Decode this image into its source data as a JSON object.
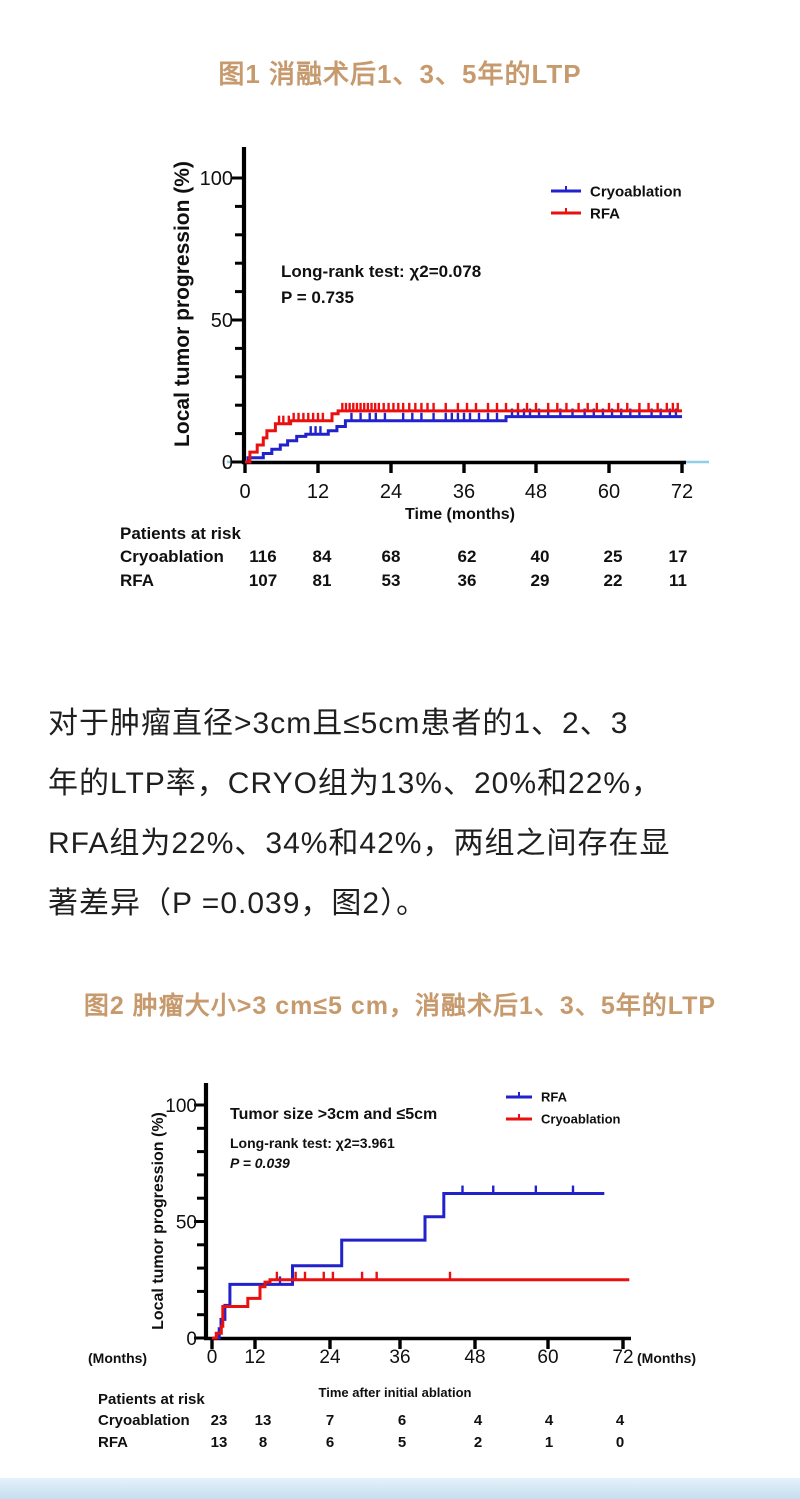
{
  "figure1": {
    "title": "图1 消融术后1、3、5年的LTP"
  },
  "figure2": {
    "title": "图2 肿瘤大小>3 cm≤5 cm，消融术后1、3、5年的LTP"
  },
  "paragraph": {
    "lines": [
      "对于肿瘤直径>3cm且≤5cm患者的1、2、3",
      "年的LTP率，CRYO组为13%、20%和22%，",
      "RFA组为22%、34%和42%，两组之间存在显",
      "著差异（P =0.039，图2）。"
    ]
  },
  "colors": {
    "accent_title": "#c79a6e",
    "blue": "#2222cc",
    "red": "#ea1010",
    "zero_line": "#8fd0e8",
    "bottom_band": "#c4def0"
  },
  "chart_data": [
    {
      "type": "line",
      "subtype": "kaplan-meier-step",
      "title": "图1 消融术后1、3、5年的LTP",
      "ylabel": "Local tumor progression (%)",
      "xlabel": "Time (months)",
      "xticks": [
        0,
        12,
        24,
        36,
        48,
        60,
        72
      ],
      "yticks": [
        0,
        50,
        100
      ],
      "ylim": [
        0,
        110
      ],
      "xlim": [
        0,
        74
      ],
      "grid": false,
      "legend_position": "upper right",
      "annotation": [
        {
          "text": "Long-rank test:  χ2=0.078"
        },
        {
          "text": "P = 0.735"
        }
      ],
      "legend": [
        {
          "label": "Cryoablation",
          "color": "#2222cc"
        },
        {
          "label": "RFA",
          "color": "#ea1010"
        }
      ],
      "series": [
        {
          "name": "Cryoablation",
          "color": "#2222cc",
          "end": 72,
          "steps": [
            [
              0,
              0
            ],
            [
              0.5,
              1.5
            ],
            [
              3,
              3
            ],
            [
              4.4,
              4.5
            ],
            [
              5.8,
              6
            ],
            [
              7,
              7.5
            ],
            [
              8.5,
              9
            ],
            [
              10,
              9.8
            ],
            [
              13.7,
              11
            ],
            [
              15.1,
              12.5
            ],
            [
              16.5,
              14.5
            ],
            [
              43,
              16
            ]
          ],
          "censors": [
            10.8,
            11.6,
            12.4,
            17.5,
            19,
            20.5,
            21.5,
            23,
            26,
            27.5,
            29,
            31,
            33,
            34,
            35,
            36,
            37,
            38.5,
            40,
            41.5,
            44,
            45,
            46,
            47,
            48.5,
            50,
            52,
            54,
            56,
            57.5,
            59,
            60.5,
            62,
            63.5,
            65,
            67,
            68.5,
            70,
            71
          ]
        },
        {
          "name": "RFA",
          "color": "#ea1010",
          "end": 72,
          "steps": [
            [
              0,
              0
            ],
            [
              0.8,
              3.5
            ],
            [
              2,
              6
            ],
            [
              3,
              8.5
            ],
            [
              3.6,
              11
            ],
            [
              5,
              13.5
            ],
            [
              7.5,
              14.5
            ],
            [
              14.3,
              17
            ],
            [
              15.3,
              18
            ]
          ],
          "censors": [
            5.6,
            6.3,
            7.2,
            8,
            8.8,
            9.6,
            10.4,
            11.2,
            12,
            12.8,
            16,
            16.6,
            17.2,
            17.8,
            18.4,
            19,
            19.6,
            20.2,
            20.8,
            21.4,
            22,
            22.8,
            23.6,
            24.4,
            25.2,
            26,
            27,
            28,
            29,
            30,
            31,
            33,
            35,
            36.5,
            38,
            40,
            41.5,
            43,
            45,
            46.5,
            48,
            50,
            51.5,
            53,
            55,
            56.5,
            58,
            60,
            61.5,
            63,
            65,
            66.5,
            68,
            69.5,
            70.5,
            71.3
          ]
        }
      ],
      "risk_table": {
        "title": "Patients at risk",
        "rows": [
          {
            "label": "Cryoablation",
            "values": [
              116,
              84,
              68,
              62,
              40,
              25,
              17
            ]
          },
          {
            "label": "RFA",
            "values": [
              107,
              81,
              53,
              36,
              29,
              22,
              11
            ]
          }
        ]
      }
    },
    {
      "type": "line",
      "subtype": "kaplan-meier-step",
      "title": "图2 肿瘤大小>3 cm≤5 cm，消融术后1、3、5年的LTP",
      "ylabel": "Local tumor progression (%)",
      "xlabel": "Time after initial  ablation",
      "axis_unit_left": "(Months)",
      "axis_unit_right": "(Months)",
      "xticks": [
        0,
        12,
        24,
        36,
        48,
        60,
        72
      ],
      "yticks": [
        0,
        50,
        100
      ],
      "ylim": [
        0,
        110
      ],
      "xlim": [
        0,
        74
      ],
      "grid": false,
      "legend_position": "upper right",
      "annotation": [
        {
          "text": "Tumor size >3cm and ≤5cm"
        },
        {
          "text": "Long-rank test: χ2=3.961"
        },
        {
          "text": "P = 0.039",
          "italic": true
        }
      ],
      "legend": [
        {
          "label": "RFA",
          "color": "#2222cc"
        },
        {
          "label": "Cryoablation",
          "color": "#ea1010"
        }
      ],
      "series": [
        {
          "name": "RFA",
          "color": "#2222cc",
          "end": 69,
          "steps": [
            [
              0,
              0
            ],
            [
              2,
              4
            ],
            [
              2.5,
              8
            ],
            [
              3.6,
              14
            ],
            [
              5,
              23
            ],
            [
              18,
              31
            ],
            [
              26,
              42
            ],
            [
              40,
              52
            ],
            [
              43,
              62
            ]
          ],
          "censors": [
            16,
            46,
            51,
            58,
            64
          ]
        },
        {
          "name": "Cryoablation",
          "color": "#ea1010",
          "end": 73,
          "steps": [
            [
              0,
              0
            ],
            [
              1.2,
              2
            ],
            [
              2.6,
              5
            ],
            [
              3,
              13.5
            ],
            [
              10,
              17
            ],
            [
              12.8,
              22
            ],
            [
              13.6,
              24
            ],
            [
              14.4,
              25
            ]
          ],
          "censors": [
            15.5,
            18.5,
            20,
            23,
            24.5,
            29.5,
            32,
            44
          ]
        }
      ],
      "risk_table": {
        "title": "Patients at risk",
        "rows": [
          {
            "label": "Cryoablation",
            "values": [
              23,
              13,
              7,
              6,
              4,
              4,
              4
            ]
          },
          {
            "label": "RFA",
            "values": [
              13,
              8,
              6,
              5,
              2,
              1,
              0
            ]
          }
        ]
      }
    }
  ]
}
